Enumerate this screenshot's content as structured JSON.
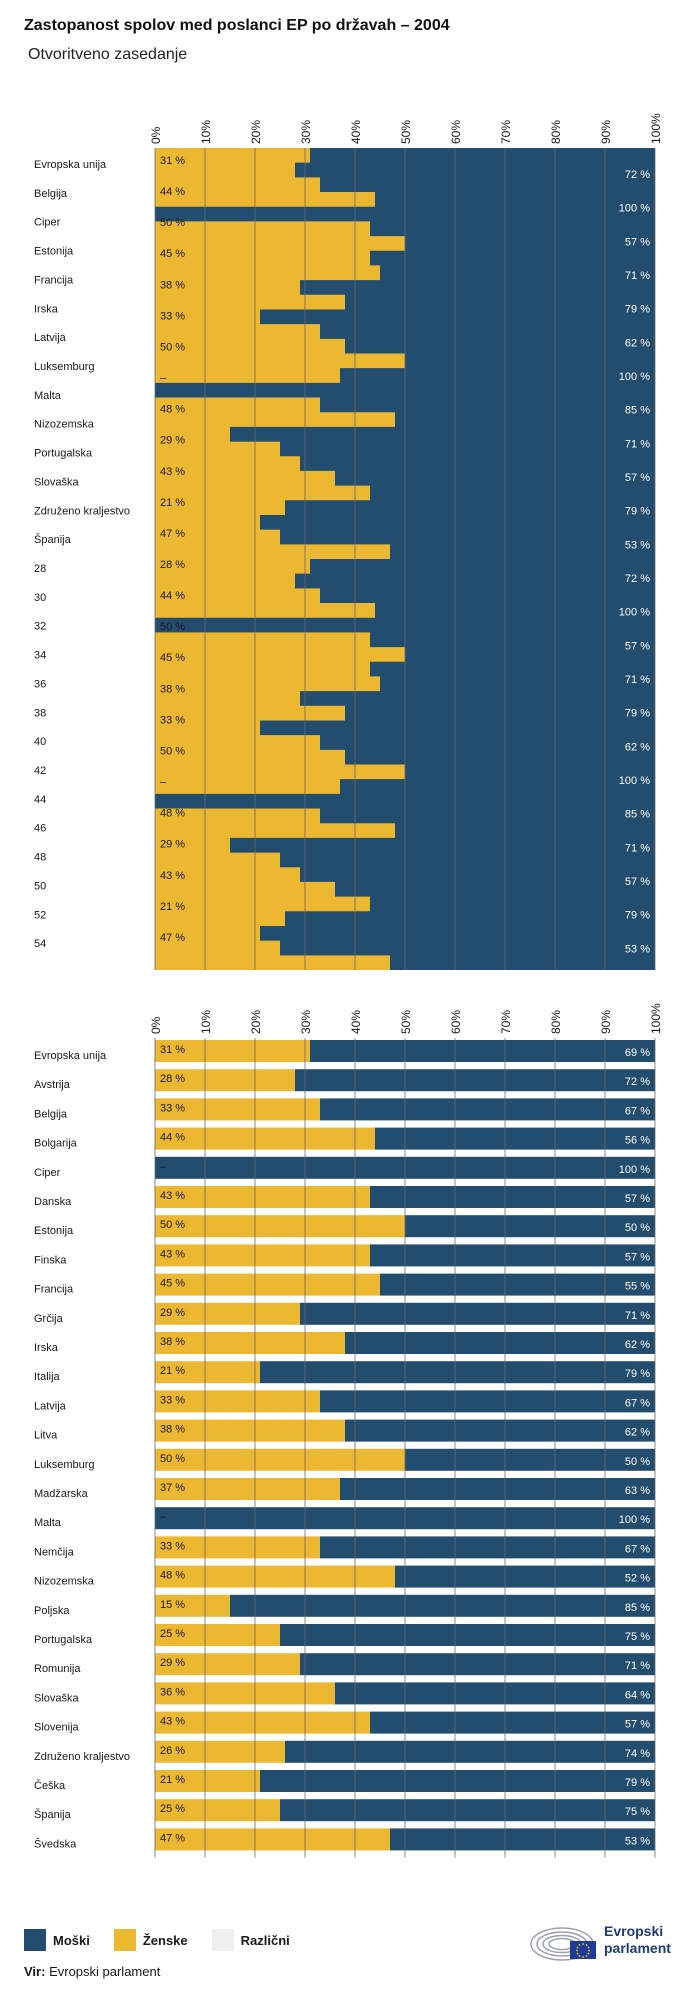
{
  "title": "Zastopanost spolov med poslanci EP po državah – 2004",
  "subtitle": "Otvoritveno zasedanje",
  "colors": {
    "male": "#234d6e",
    "female": "#ecb731",
    "other": "#eeeff1",
    "grid": "#6b6b6b",
    "text": "#1a1a1a"
  },
  "axis_ticks": [
    "0%",
    "10%",
    "20%",
    "30%",
    "40%",
    "50%",
    "60%",
    "70%",
    "80%",
    "90%",
    "100%"
  ],
  "chart_data": [
    {
      "type": "area",
      "title": "",
      "xlim": [
        0,
        100
      ],
      "row_labels": [
        "Evropska unija",
        "Belgija",
        "Ciper",
        "Estonija",
        "Francija",
        "Irska",
        "Latvija",
        "Luksemburg",
        "Malta",
        "Nizozemska",
        "Portugalska",
        "Slovaška",
        "Združeno kraljestvo",
        "Španija",
        "28",
        "30",
        "32",
        "34",
        "36",
        "38",
        "40",
        "42",
        "44",
        "46",
        "48",
        "50",
        "52",
        "54"
      ],
      "female_labels": [
        "31 %",
        "44 %",
        "50 %",
        "45 %",
        "38 %",
        "33 %",
        "50 %",
        "–",
        "48 %",
        "29 %",
        "43 %",
        "21 %",
        "47 %",
        "28 %",
        "44 %",
        "50 %",
        "45 %",
        "38 %",
        "33 %",
        "50 %",
        "–",
        "48 %",
        "29 %",
        "43 %",
        "21 %",
        "47 %"
      ],
      "male_labels": [
        "72 %",
        "100 %",
        "57 %",
        "71 %",
        "79 %",
        "62 %",
        "100 %",
        "85 %",
        "71 %",
        "57 %",
        "79 %",
        "53 %",
        "72 %",
        "100 %",
        "57 %",
        "71 %",
        "79 %",
        "62 %",
        "100 %",
        "85 %",
        "71 %",
        "57 %",
        "79 %",
        "53 %"
      ],
      "female_steps": [
        31,
        28,
        33,
        44,
        0,
        43,
        50,
        43,
        45,
        29,
        38,
        21,
        33,
        38,
        50,
        37,
        0,
        33,
        48,
        15,
        25,
        29,
        36,
        43,
        26,
        21,
        25,
        47,
        31,
        28,
        33,
        44,
        0,
        43,
        50,
        43,
        45,
        29,
        38,
        21,
        33,
        38,
        50,
        37,
        0,
        33,
        48,
        15,
        25,
        29,
        36,
        43,
        26,
        21,
        25,
        47
      ]
    },
    {
      "type": "bar",
      "title": "",
      "stacked": true,
      "xlim": [
        0,
        100
      ],
      "categories": [
        "Evropska unija",
        "Avstrija",
        "Belgija",
        "Bolgarija",
        "Ciper",
        "Danska",
        "Estonija",
        "Finska",
        "Francija",
        "Grčija",
        "Irska",
        "Italija",
        "Latvija",
        "Litva",
        "Luksemburg",
        "Madžarska",
        "Malta",
        "Nemčija",
        "Nizozemska",
        "Poljska",
        "Portugalska",
        "Romunija",
        "Slovaška",
        "Slovenija",
        "Združeno kraljestvo",
        "Češka",
        "Španija",
        "Švedska"
      ],
      "series": [
        {
          "name": "Ženske",
          "values": [
            31,
            28,
            33,
            44,
            0,
            43,
            50,
            43,
            45,
            29,
            38,
            21,
            33,
            38,
            50,
            37,
            0,
            33,
            48,
            15,
            25,
            29,
            36,
            43,
            26,
            21,
            25,
            47
          ],
          "labels": [
            "31 %",
            "28 %",
            "33 %",
            "44 %",
            "–",
            "43 %",
            "50 %",
            "43 %",
            "45 %",
            "29 %",
            "38 %",
            "21 %",
            "33 %",
            "38 %",
            "50 %",
            "37 %",
            "–",
            "33 %",
            "48 %",
            "15 %",
            "25 %",
            "29 %",
            "36 %",
            "43 %",
            "26 %",
            "21 %",
            "25 %",
            "47 %"
          ]
        },
        {
          "name": "Moški",
          "values": [
            69,
            72,
            67,
            56,
            100,
            57,
            50,
            57,
            55,
            71,
            62,
            79,
            67,
            62,
            50,
            63,
            100,
            67,
            52,
            85,
            75,
            71,
            64,
            57,
            74,
            79,
            75,
            53
          ],
          "labels": [
            "69 %",
            "72 %",
            "67 %",
            "56 %",
            "100 %",
            "57 %",
            "50 %",
            "57 %",
            "55 %",
            "71 %",
            "62 %",
            "79 %",
            "67 %",
            "62 %",
            "50 %",
            "63 %",
            "100 %",
            "67 %",
            "52 %",
            "85 %",
            "75 %",
            "71 %",
            "64 %",
            "57 %",
            "74 %",
            "79 %",
            "75 %",
            "53 %"
          ]
        }
      ]
    }
  ],
  "legend": {
    "male": "Moški",
    "female": "Ženske",
    "other": "Različni"
  },
  "source": {
    "label": "Vir:",
    "text": "Evropski parlament"
  },
  "logo": {
    "line1": "Evropski",
    "line2": "parlament"
  }
}
